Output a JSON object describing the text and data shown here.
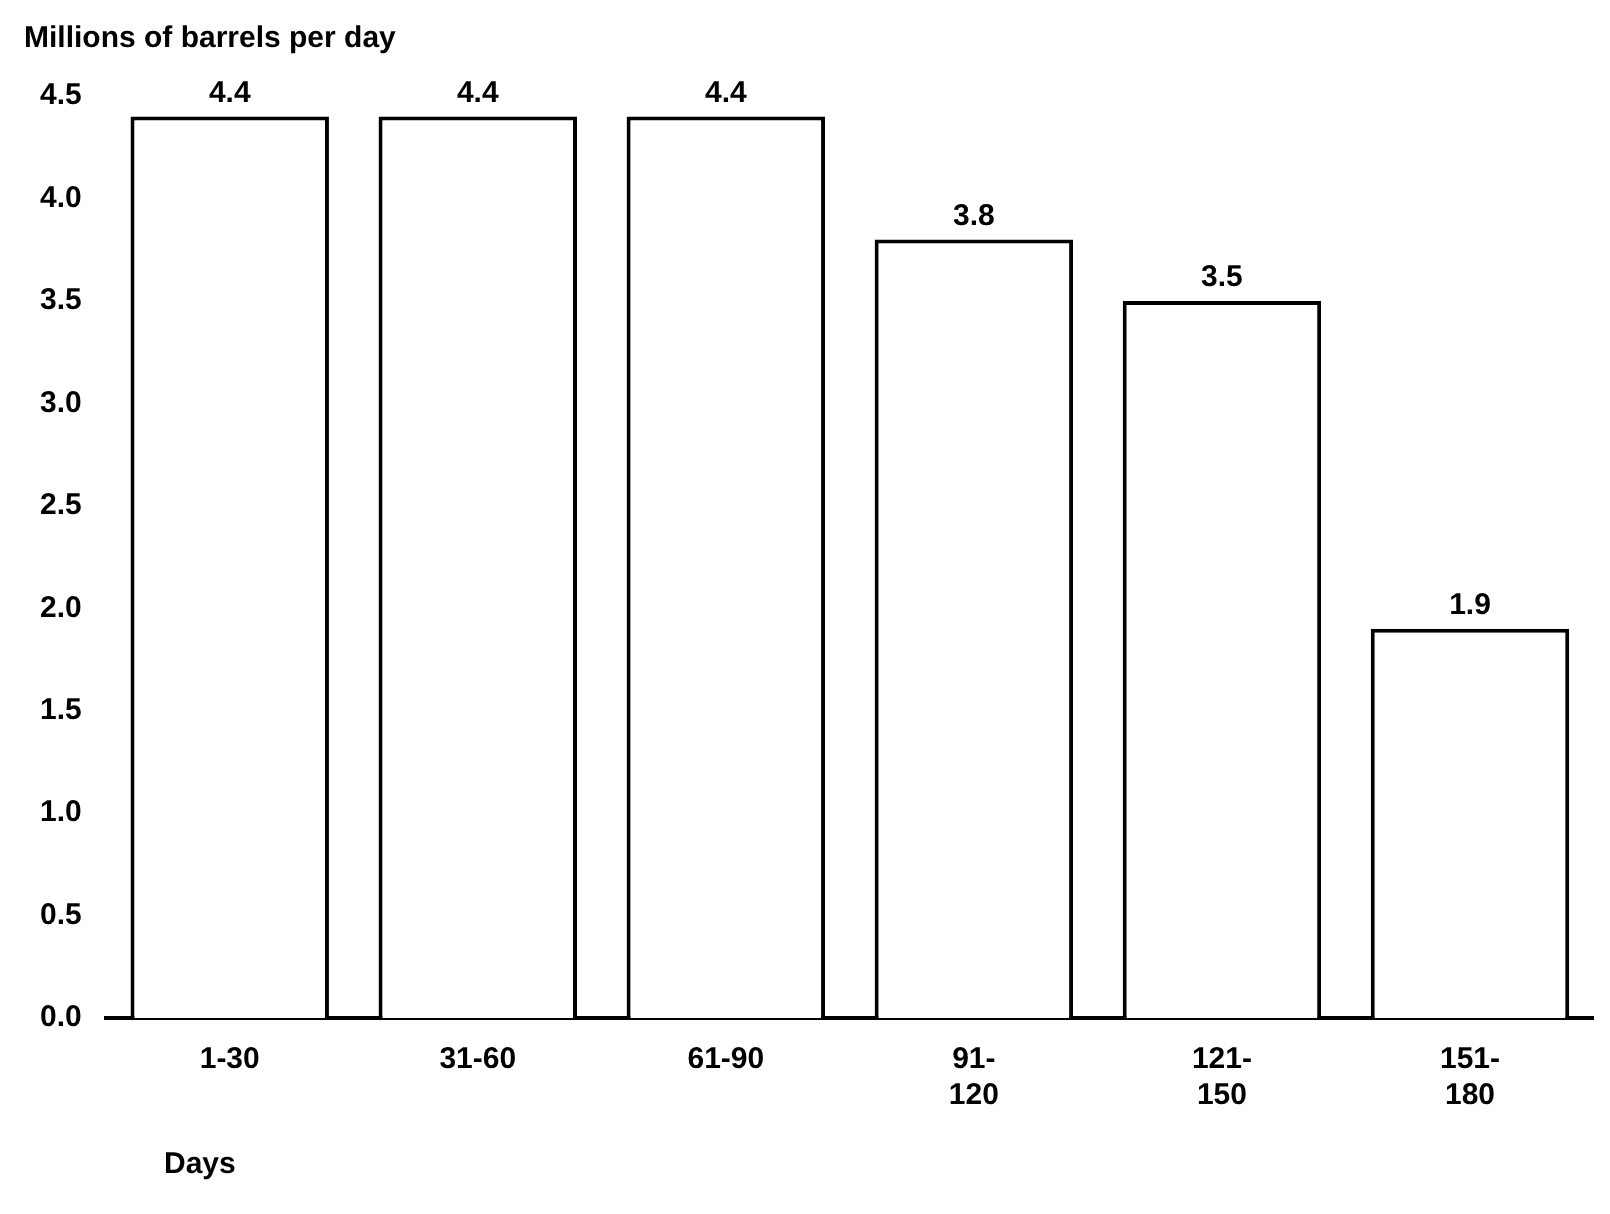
{
  "chart_data": {
    "type": "bar",
    "ylabel": "Millions of barrels per day",
    "xlabel": "Days",
    "categories": [
      "1-30",
      "31-60",
      "61-90",
      "91-120",
      "121-150",
      "151-180"
    ],
    "values": [
      4.4,
      4.4,
      4.4,
      3.8,
      3.5,
      1.9
    ],
    "color": "#ffffff",
    "ylim": [
      0,
      4.5
    ],
    "yticks": [
      {
        "value": 0,
        "label": "0.0"
      },
      {
        "value": 0.5,
        "label": "0.5"
      },
      {
        "value": 1,
        "label": "1.0"
      },
      {
        "value": 1.5,
        "label": "1.5"
      },
      {
        "value": 2,
        "label": "2.0"
      },
      {
        "value": 2.5,
        "label": "2.5"
      },
      {
        "value": 3,
        "label": "3.0"
      },
      {
        "value": 3.5,
        "label": "3.5"
      },
      {
        "value": 4,
        "label": "4.0"
      },
      {
        "value": 4.5,
        "label": "4.5"
      }
    ],
    "grid": false,
    "legend": false,
    "data_labels": true
  }
}
